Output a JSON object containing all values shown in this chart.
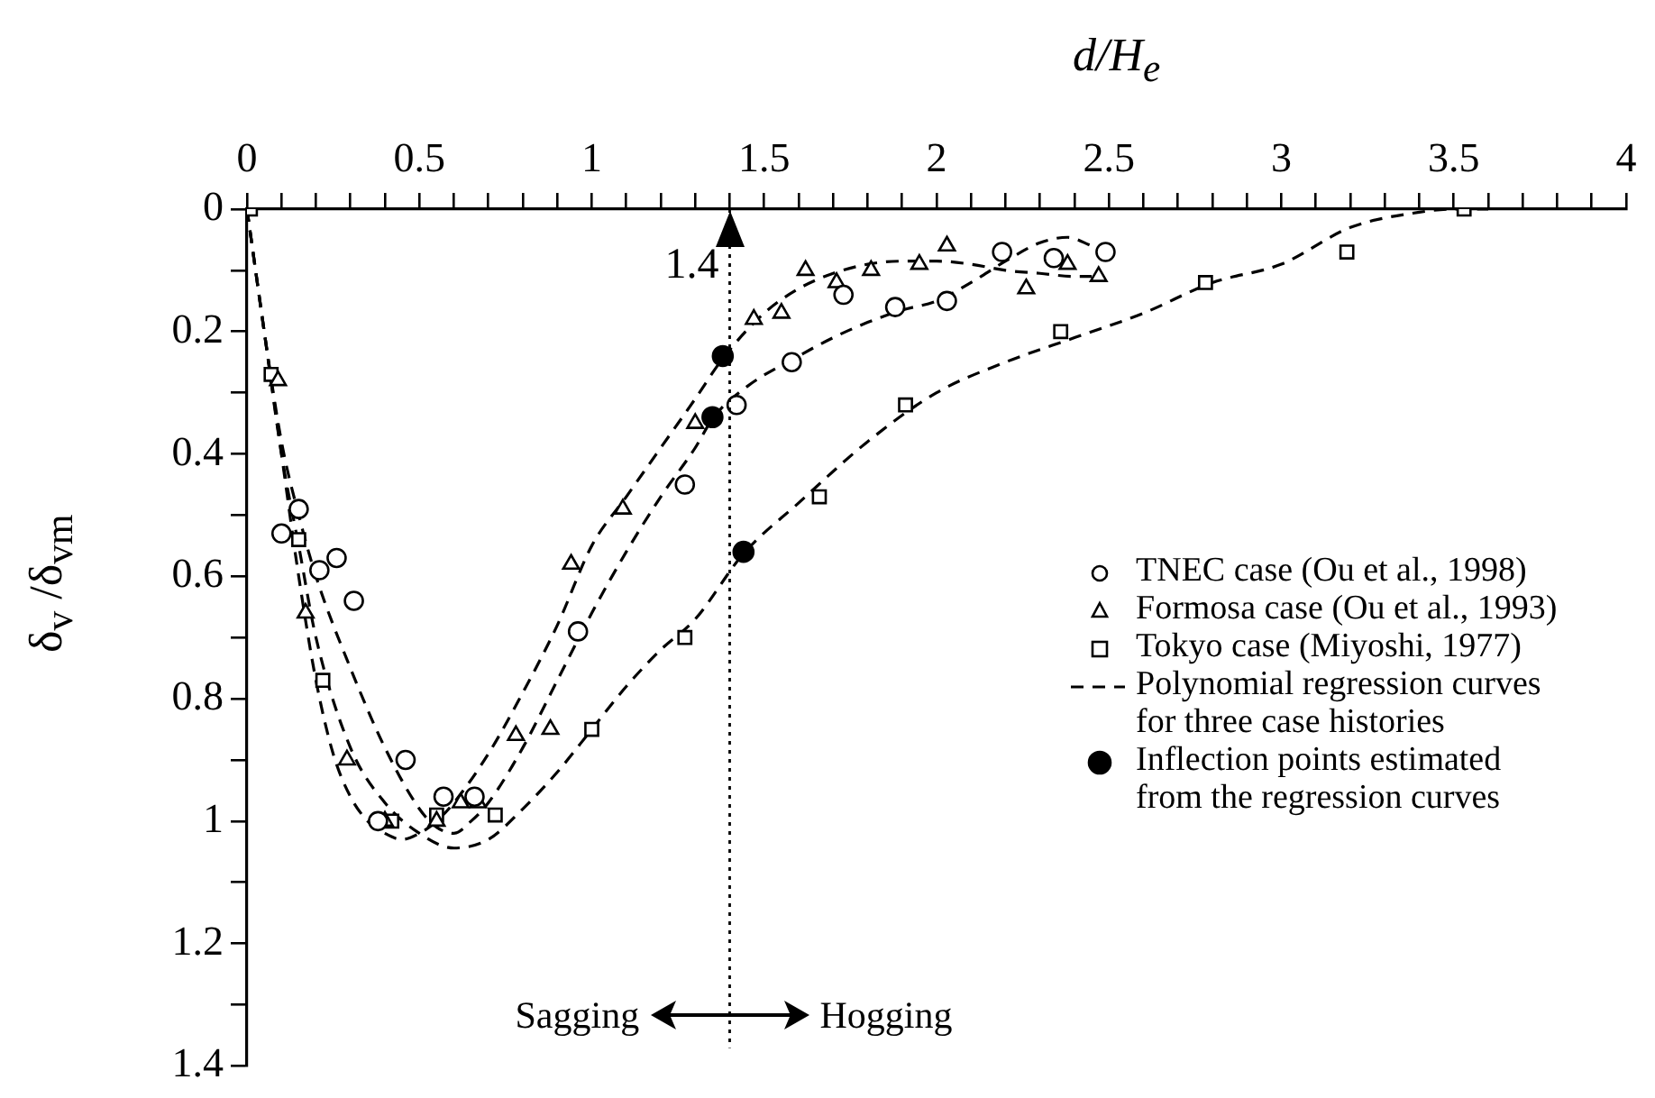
{
  "chart_data": {
    "type": "scatter",
    "xlabel": "d/H$_{e}$",
    "ylabel": "δ$_{v}$ /δ$_{vm}$",
    "xlim": [
      0,
      4
    ],
    "ylim": [
      1.4,
      0
    ],
    "xticks": [
      0,
      {
        "value": 0.1,
        "label": null
      },
      {
        "value": 0.2,
        "label": null
      },
      {
        "value": 0.3,
        "label": null
      },
      {
        "value": 0.4,
        "label": null
      },
      0.5,
      {
        "value": 0.6,
        "label": null
      },
      {
        "value": 0.7,
        "label": null
      },
      {
        "value": 0.8,
        "label": null
      },
      {
        "value": 0.9,
        "label": null
      },
      1,
      {
        "value": 1.1,
        "label": null
      },
      {
        "value": 1.2,
        "label": null
      },
      {
        "value": 1.3,
        "label": null
      },
      {
        "value": 1.4,
        "label": null
      },
      1.5,
      {
        "value": 1.6,
        "label": null
      },
      {
        "value": 1.7,
        "label": null
      },
      {
        "value": 1.8,
        "label": null
      },
      {
        "value": 1.9,
        "label": null
      },
      2,
      {
        "value": 2.1,
        "label": null
      },
      {
        "value": 2.2,
        "label": null
      },
      {
        "value": 2.3,
        "label": null
      },
      {
        "value": 2.4,
        "label": null
      },
      2.5,
      {
        "value": 2.6,
        "label": null
      },
      {
        "value": 2.7,
        "label": null
      },
      {
        "value": 2.8,
        "label": null
      },
      {
        "value": 2.9,
        "label": null
      },
      3,
      {
        "value": 3.1,
        "label": null
      },
      {
        "value": 3.2,
        "label": null
      },
      {
        "value": 3.3,
        "label": null
      },
      {
        "value": 3.4,
        "label": null
      },
      3.5,
      {
        "value": 3.6,
        "label": null
      },
      {
        "value": 3.7,
        "label": null
      },
      {
        "value": 3.8,
        "label": null
      },
      {
        "value": 3.9,
        "label": null
      },
      4
    ],
    "yticks": [
      0,
      {
        "value": 0.1,
        "label": null
      },
      0.2,
      {
        "value": 0.3,
        "label": null
      },
      0.4,
      {
        "value": 0.5,
        "label": null
      },
      0.6,
      {
        "value": 0.7,
        "label": null
      },
      0.8,
      {
        "value": 0.9,
        "label": null
      },
      1,
      {
        "value": 1.1,
        "label": null
      },
      1.2,
      {
        "value": 1.3,
        "label": null
      },
      1.4
    ],
    "grid": false,
    "legend": "right",
    "series": [
      {
        "type": "line",
        "name": "Polynomial regression curves for three case histories",
        "color": "#000000",
        "line_style": "dashed",
        "marker": "none",
        "x": [
          0,
          0.05,
          0.1,
          0.15,
          0.2,
          0.25,
          0.3,
          0.35,
          0.4,
          0.45,
          0.5,
          0.55,
          0.6,
          0.7,
          0.8,
          0.9,
          1.0,
          1.1,
          1.2,
          1.3,
          1.38,
          1.5,
          1.6,
          1.7,
          1.8,
          1.9,
          2.0,
          2.1,
          2.2,
          2.3,
          2.4,
          2.45
        ],
        "values": [
          0,
          0.2,
          0.4,
          0.6,
          0.77,
          0.89,
          0.96,
          1.0,
          1.02,
          1.03,
          1.02,
          1.0,
          0.97,
          0.89,
          0.79,
          0.68,
          0.55,
          0.47,
          0.39,
          0.31,
          0.244,
          0.17,
          0.13,
          0.105,
          0.09,
          0.085,
          0.085,
          0.09,
          0.1,
          0.105,
          0.11,
          0.11
        ]
      },
      {
        "type": "line",
        "color": "#000000",
        "line_style": "dashed",
        "marker": "none",
        "x": [
          0,
          0.05,
          0.1,
          0.15,
          0.2,
          0.3,
          0.4,
          0.5,
          0.55,
          0.6,
          0.65,
          0.7,
          0.8,
          0.9,
          1.0,
          1.1,
          1.2,
          1.3,
          1.352,
          1.45,
          1.6,
          1.7,
          1.8,
          1.9,
          2.0,
          2.1,
          2.2,
          2.3,
          2.38,
          2.45
        ],
        "values": [
          0,
          0.2,
          0.38,
          0.5,
          0.6,
          0.75,
          0.88,
          0.98,
          1.01,
          1.02,
          1.0,
          0.97,
          0.88,
          0.77,
          0.66,
          0.56,
          0.47,
          0.39,
          0.341,
          0.29,
          0.24,
          0.21,
          0.185,
          0.165,
          0.15,
          0.12,
          0.085,
          0.055,
          0.046,
          0.06
        ]
      },
      {
        "type": "line",
        "color": "#000000",
        "line_style": "dashed",
        "marker": "none",
        "x": [
          0,
          0.05,
          0.1,
          0.15,
          0.2,
          0.3,
          0.4,
          0.5,
          0.6,
          0.7,
          0.8,
          0.9,
          1.0,
          1.1,
          1.2,
          1.3,
          1.44,
          1.6,
          1.8,
          2.0,
          2.2,
          2.4,
          2.6,
          2.8,
          3.0,
          3.2,
          3.4,
          3.5,
          3.6
        ],
        "values": [
          0,
          0.2,
          0.4,
          0.55,
          0.7,
          0.88,
          0.97,
          1.02,
          1.044,
          1.03,
          0.98,
          0.92,
          0.85,
          0.78,
          0.72,
          0.67,
          0.563,
          0.48,
          0.38,
          0.3,
          0.25,
          0.21,
          0.17,
          0.12,
          0.09,
          0.03,
          0.005,
          0,
          0
        ]
      },
      {
        "type": "scatter",
        "name": "TNEC case (Ou et al., 1998)",
        "color": "#000000",
        "marker": "circle",
        "x": [
          0.1,
          0.15,
          0.21,
          0.26,
          0.31,
          0.46,
          0.38,
          0.57,
          0.66,
          0.96,
          1.27,
          1.42,
          1.58,
          1.73,
          1.88,
          2.03,
          2.19,
          2.34,
          2.49
        ],
        "values": [
          0.53,
          0.49,
          0.59,
          0.57,
          0.64,
          0.9,
          1.0,
          0.96,
          0.96,
          0.69,
          0.45,
          0.32,
          0.25,
          0.14,
          0.16,
          0.15,
          0.07,
          0.08,
          0.07
        ]
      },
      {
        "type": "scatter",
        "name": "Formosa case (Ou et al., 1993)",
        "color": "#000000",
        "marker": "triangle",
        "x": [
          0.09,
          0.17,
          0.29,
          0.4,
          0.55,
          0.62,
          0.67,
          0.78,
          0.88,
          0.94,
          1.09,
          1.3,
          1.47,
          1.55,
          1.62,
          1.71,
          1.81,
          1.95,
          2.03,
          2.26,
          2.38,
          2.47
        ],
        "values": [
          0.28,
          0.66,
          0.9,
          1.0,
          1.0,
          0.97,
          0.97,
          0.86,
          0.85,
          0.58,
          0.49,
          0.35,
          0.18,
          0.17,
          0.1,
          0.12,
          0.1,
          0.09,
          0.06,
          0.13,
          0.09,
          0.11
        ]
      },
      {
        "type": "scatter",
        "name": "Tokyo case (Miyoshi, 1977)",
        "color": "#000000",
        "marker": "square",
        "x": [
          0.01,
          0.07,
          0.15,
          0.22,
          0.42,
          0.55,
          0.72,
          1.0,
          1.27,
          1.66,
          1.91,
          2.36,
          2.78,
          3.19,
          3.53
        ],
        "values": [
          0,
          0.27,
          0.54,
          0.77,
          1.0,
          0.99,
          0.99,
          0.85,
          0.7,
          0.47,
          0.32,
          0.2,
          0.12,
          0.07,
          0
        ]
      },
      {
        "type": "scatter",
        "name": "Inflection points estimated from the regression curves",
        "color": "#000000",
        "colors": [
          "#000000",
          "#000000",
          "#000000"
        ],
        "marker": "circle",
        "x": [
          1.38,
          1.35,
          1.44
        ],
        "values": [
          0.24,
          0.34,
          0.56
        ]
      }
    ],
    "ref_lines": [
      {
        "axis": "x",
        "value": 1.4,
        "label": "1.4",
        "line_style": "dotted",
        "color": "#000000"
      }
    ],
    "annotations": [
      "Sagging",
      "Hogging"
    ]
  }
}
